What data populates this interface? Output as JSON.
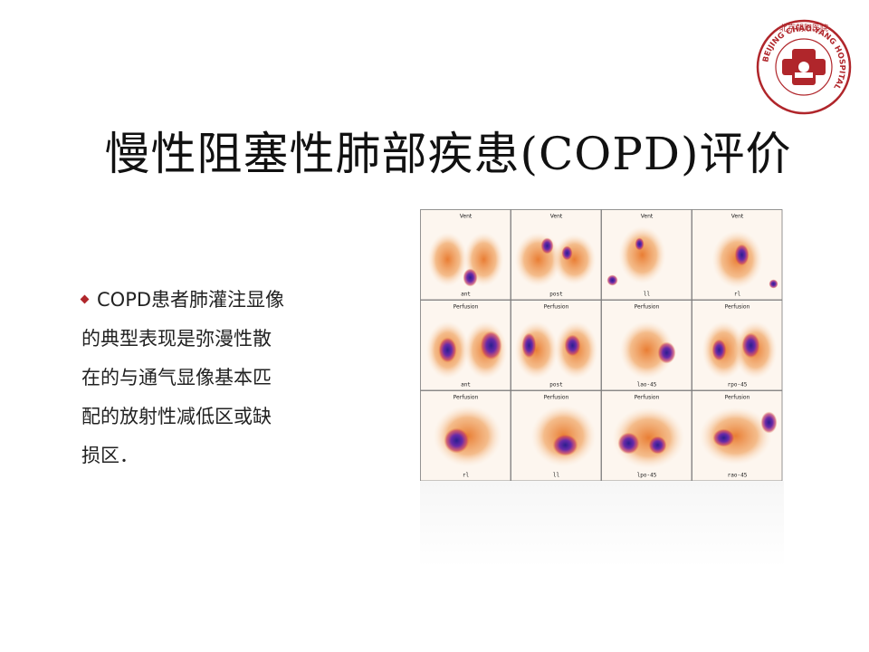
{
  "slide": {
    "title": "慢性阻塞性肺部疾患(COPD)评价",
    "bullet_lines": [
      "COPD患者肺灌注显像",
      "的典型表现是弥漫性散",
      "在的与通气显像基本匹",
      "配的放射性减低区或缺",
      "损区．"
    ]
  },
  "logo": {
    "name_en": "BEIJING CHAO-YANG HOSPITAL",
    "name_cn": "北京朝阳医院",
    "color": "#b0262b"
  },
  "scan_grid": {
    "rows": [
      {
        "header": "Vent",
        "labels": [
          "ant",
          "post",
          "ll",
          "rl"
        ]
      },
      {
        "header": "Perfusion",
        "labels": [
          "ant",
          "post",
          "lao-45",
          "rpo-45"
        ]
      },
      {
        "header": "Perfusion",
        "labels": [
          "rl",
          "ll",
          "lpo-45",
          "rao-45"
        ]
      }
    ]
  }
}
